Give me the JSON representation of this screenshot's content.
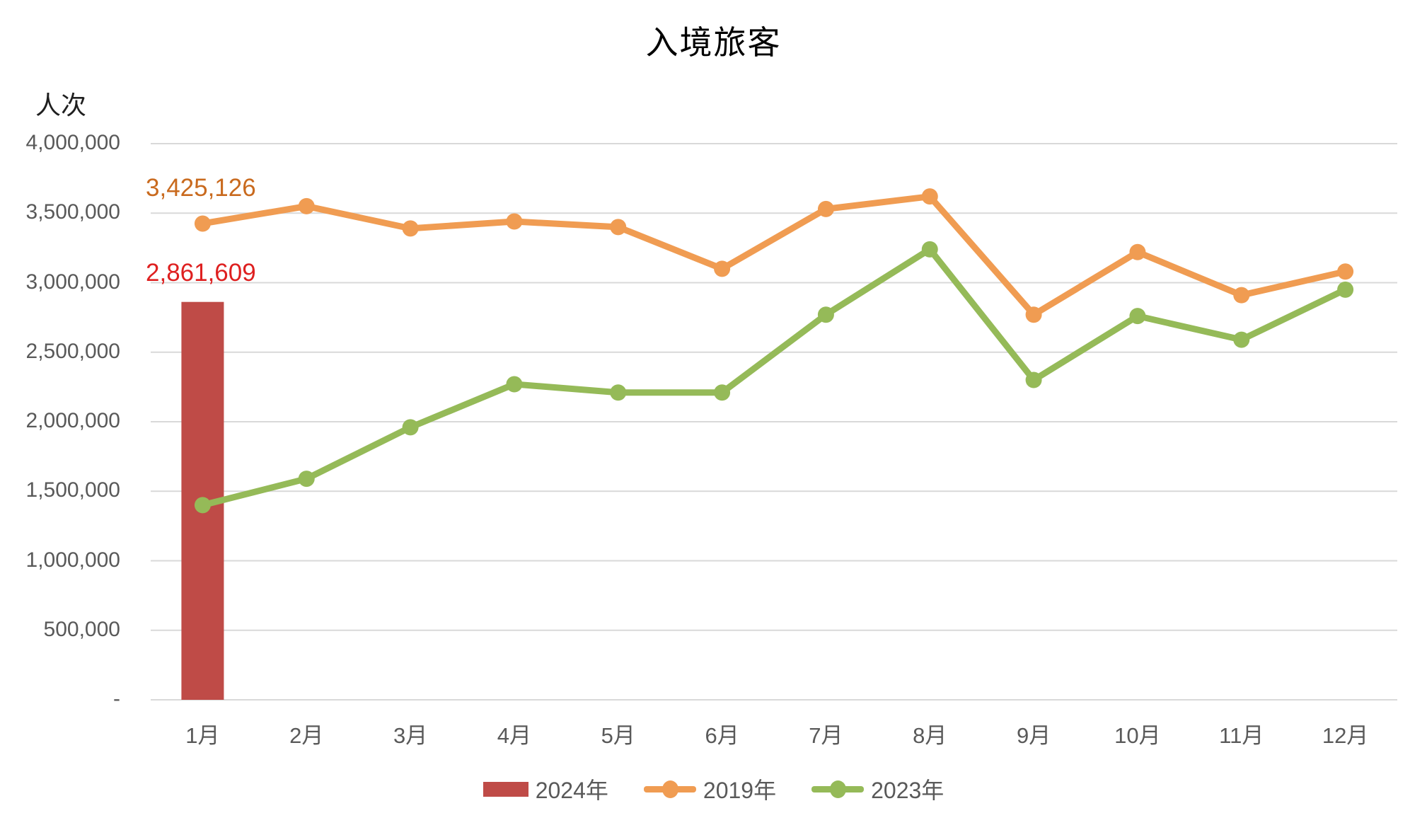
{
  "title": "入境旅客",
  "y_axis_unit": "人次",
  "annotations": {
    "jan_2019": "3,425,126",
    "jan_2024": "2,861,609"
  },
  "legend": {
    "items": [
      {
        "label": "2024年",
        "type": "bar",
        "color": "#BF4B47"
      },
      {
        "label": "2019年",
        "type": "line",
        "color": "#F09C52"
      },
      {
        "label": "2023年",
        "type": "line",
        "color": "#95BA58"
      }
    ]
  },
  "colors": {
    "background": "#FFFFFF",
    "gridline": "#D9D9D9",
    "axis_text": "#595959",
    "title_text": "#000000",
    "annotation_2019": "#C96A1E",
    "annotation_2024": "#DE2020",
    "bar_2024": "#BF4B47",
    "line_2019": "#F09C52",
    "line_2023": "#95BA58"
  },
  "chart_data": {
    "type": "combo",
    "title": "入境旅客",
    "xlabel": "",
    "ylabel": "人次",
    "categories": [
      "1月",
      "2月",
      "3月",
      "4月",
      "5月",
      "6月",
      "7月",
      "8月",
      "9月",
      "10月",
      "11月",
      "12月"
    ],
    "series": [
      {
        "name": "2024年",
        "type": "bar",
        "color": "#BF4B47",
        "values": [
          2861609,
          null,
          null,
          null,
          null,
          null,
          null,
          null,
          null,
          null,
          null,
          null
        ]
      },
      {
        "name": "2019年",
        "type": "line",
        "color": "#F09C52",
        "values": [
          3425126,
          3550000,
          3390000,
          3440000,
          3400000,
          3100000,
          3530000,
          3620000,
          2770000,
          3220000,
          2910000,
          3080000
        ]
      },
      {
        "name": "2023年",
        "type": "line",
        "color": "#95BA58",
        "values": [
          1400000,
          1590000,
          1960000,
          2270000,
          2210000,
          2210000,
          2770000,
          3240000,
          2300000,
          2760000,
          2590000,
          2950000
        ]
      }
    ],
    "ylim": [
      0,
      4000000
    ],
    "ytick_step": 500000,
    "ytick_labels_top_to_bottom": [
      "4,000,000",
      "3,500,000",
      "3,000,000",
      "2,500,000",
      "2,000,000",
      "1,500,000",
      "1,000,000",
      "500,000",
      "-"
    ],
    "grid": true,
    "legend_position": "bottom",
    "point_labels": [
      {
        "series": "2019年",
        "category": "1月",
        "text": "3,425,126"
      },
      {
        "series": "2024年",
        "category": "1月",
        "text": "2,861,609"
      }
    ]
  }
}
